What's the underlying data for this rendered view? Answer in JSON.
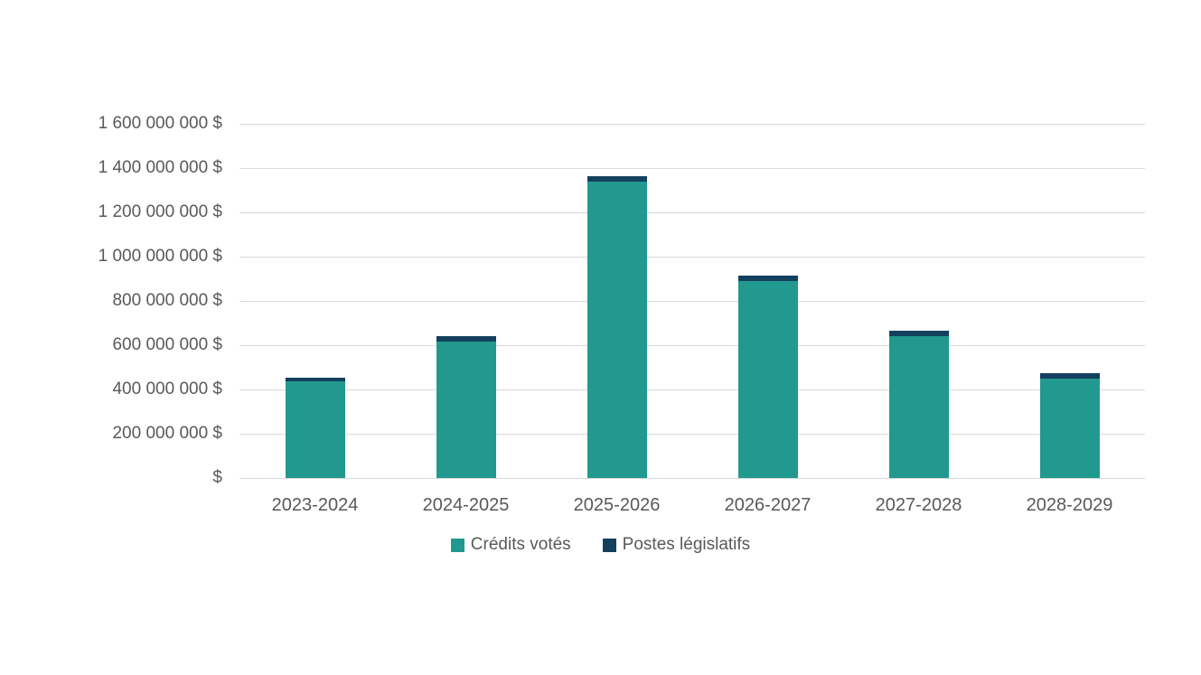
{
  "colors": {
    "background": "#FFFFFF",
    "gridline": "#D9D9D9",
    "axis_text": "#595959",
    "series_credits_votes": "#21998E",
    "series_postes_legislatifs": "#14405E"
  },
  "chart_data": {
    "type": "bar",
    "stacked": true,
    "grid": true,
    "legend_position": "bottom",
    "categories": [
      "2023-2024",
      "2024-2025",
      "2025-2026",
      "2026-2027",
      "2027-2028",
      "2028-2029"
    ],
    "series": [
      {
        "name": "Crédits votés",
        "color": "#21998E",
        "values": [
          435000000,
          615000000,
          1340000000,
          890000000,
          640000000,
          450000000
        ]
      },
      {
        "name": "Postes législatifs",
        "color": "#14405E",
        "values": [
          20000000,
          25000000,
          25000000,
          25000000,
          25000000,
          25000000
        ]
      }
    ],
    "title": "",
    "xlabel": "",
    "ylabel": "",
    "ylim": [
      0,
      1600000000
    ],
    "ytick_values": [
      0,
      200000000,
      400000000,
      600000000,
      800000000,
      1000000000,
      1200000000,
      1400000000,
      1600000000
    ],
    "ytick_labels": [
      "$",
      "200 000 000 $",
      "400 000 000 $",
      "600 000 000 $",
      "800 000 000 $",
      "1 000 000 000 $",
      "1 200 000 000 $",
      "1 400 000 000 $",
      "1 600 000 000 $"
    ]
  }
}
